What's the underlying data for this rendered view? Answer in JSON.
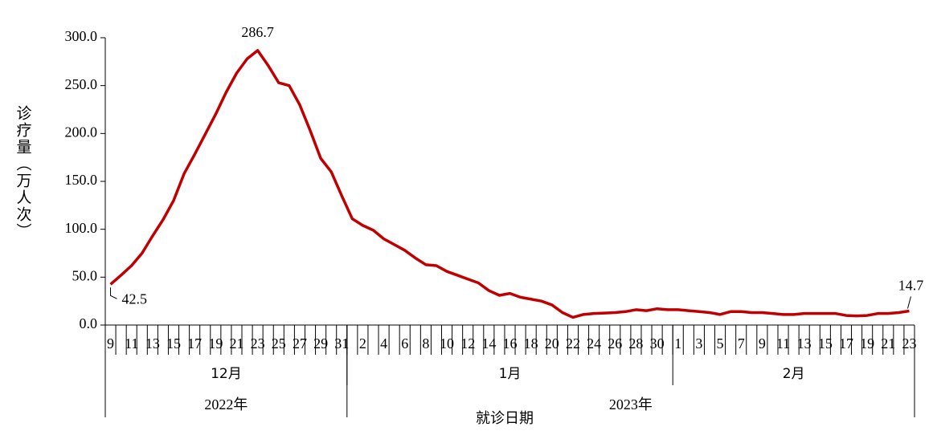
{
  "chart_data": {
    "type": "line",
    "y_label": "诊疗量（万人次）",
    "x_label": "就诊日期",
    "color": "#c00000",
    "ylim": [
      0,
      300
    ],
    "yticks": [
      {
        "value": 0,
        "label": "0.0"
      },
      {
        "value": 50,
        "label": "50.0"
      },
      {
        "value": 100,
        "label": "100.0"
      },
      {
        "value": 150,
        "label": "150.0"
      },
      {
        "value": 200,
        "label": "200.0"
      },
      {
        "value": 250,
        "label": "250.0"
      },
      {
        "value": 300,
        "label": "300.0"
      }
    ],
    "years": [
      {
        "label": "2022年",
        "months": [
          {
            "label": "12月",
            "categories": [
              "9",
              null,
              "11",
              null,
              "13",
              null,
              "15",
              null,
              "17",
              null,
              "19",
              null,
              "21",
              null,
              "23",
              null,
              "25",
              null,
              "27",
              null,
              "29",
              null,
              "31"
            ]
          }
        ]
      },
      {
        "label": "2023年",
        "months": [
          {
            "label": "1月",
            "categories": [
              null,
              "2",
              null,
              "4",
              null,
              "6",
              null,
              "8",
              null,
              "10",
              null,
              "12",
              null,
              "14",
              null,
              "16",
              null,
              "18",
              null,
              "20",
              null,
              "22",
              null,
              "24",
              null,
              "26",
              null,
              "28",
              null,
              "30",
              null
            ]
          },
          {
            "label": "2月",
            "categories": [
              "1",
              null,
              "3",
              null,
              "5",
              null,
              "7",
              null,
              "9",
              null,
              "11",
              null,
              "13",
              null,
              "15",
              null,
              "17",
              null,
              "19",
              null,
              "21",
              null,
              "23"
            ]
          }
        ]
      }
    ],
    "values": [
      42.5,
      52,
      62,
      75,
      93,
      110,
      130,
      158,
      178,
      199,
      220,
      243,
      263,
      278,
      286.7,
      271,
      253,
      250,
      230,
      203,
      174,
      160,
      135,
      111,
      104,
      99,
      90,
      84,
      78,
      70,
      63,
      62,
      56,
      52,
      48,
      44,
      36,
      31,
      33,
      29,
      27,
      25,
      21,
      13,
      8,
      11,
      12,
      12.5,
      13,
      14,
      16,
      15,
      17,
      16,
      16,
      15,
      14,
      13,
      11,
      14,
      14,
      13,
      13,
      12,
      11,
      11,
      12,
      12,
      12,
      12,
      10,
      9.5,
      10,
      12,
      12,
      13,
      14.7
    ],
    "value_labels": [
      "42.5",
      null,
      null,
      null,
      null,
      null,
      null,
      null,
      null,
      null,
      null,
      null,
      null,
      null,
      "286.7",
      null,
      null,
      null,
      null,
      null,
      null,
      null,
      null,
      null,
      null,
      null,
      null,
      null,
      null,
      null,
      null,
      null,
      null,
      null,
      null,
      null,
      null,
      null,
      null,
      null,
      null,
      null,
      null,
      null,
      null,
      null,
      null,
      null,
      null,
      null,
      null,
      null,
      null,
      null,
      null,
      null,
      null,
      null,
      null,
      null,
      null,
      null,
      null,
      null,
      null,
      null,
      null,
      null,
      null,
      null,
      null,
      null,
      null,
      null,
      null,
      null,
      "14.7"
    ]
  }
}
